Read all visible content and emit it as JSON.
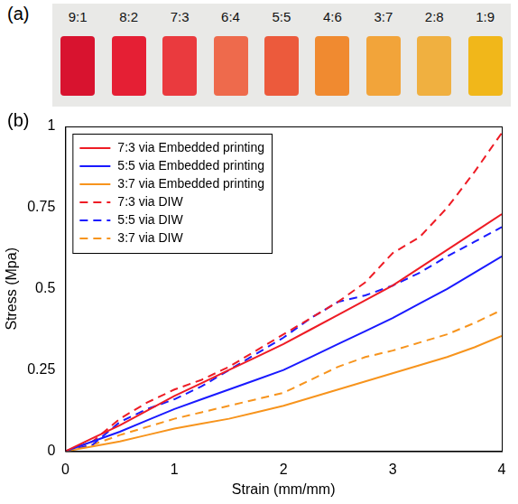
{
  "photo": {
    "label": "(a)",
    "swatches": [
      {
        "label": "9:1",
        "color": "#d8132f"
      },
      {
        "label": "8:2",
        "color": "#e51f34"
      },
      {
        "label": "7:3",
        "color": "#ea3a3e"
      },
      {
        "label": "6:4",
        "color": "#ee6a4c"
      },
      {
        "label": "5:5",
        "color": "#ec5a3c"
      },
      {
        "label": "4:6",
        "color": "#f08a30"
      },
      {
        "label": "3:7",
        "color": "#f2a43a"
      },
      {
        "label": "2:8",
        "color": "#f0b040"
      },
      {
        "label": "1:9",
        "color": "#f1b71a"
      }
    ]
  },
  "chart_label": "(b)",
  "chart_data": {
    "type": "line",
    "x_label": "Strain (mm/mm)",
    "y_label": "Stress (Mpa)",
    "x": [
      0,
      0.25,
      0.5,
      0.75,
      1,
      1.25,
      1.5,
      1.75,
      2,
      2.25,
      2.5,
      2.75,
      3,
      3.25,
      3.5,
      3.75,
      4
    ],
    "series": [
      {
        "name": "7:3 via Embedded printing",
        "color": "#ee1c25",
        "line_style": "solid",
        "values": [
          0,
          0.04,
          0.08,
          0.125,
          0.17,
          0.21,
          0.25,
          0.29,
          0.33,
          0.375,
          0.42,
          0.465,
          0.51,
          0.565,
          0.62,
          0.675,
          0.73
        ]
      },
      {
        "name": "5:5 via Embedded printing",
        "color": "#1a1aff",
        "line_style": "solid",
        "values": [
          0,
          0.03,
          0.06,
          0.095,
          0.13,
          0.16,
          0.19,
          0.22,
          0.25,
          0.29,
          0.33,
          0.37,
          0.41,
          0.455,
          0.5,
          0.55,
          0.6
        ]
      },
      {
        "name": "3:7 via Embedded printing",
        "color": "#f7941d",
        "line_style": "solid",
        "values": [
          0,
          0.015,
          0.03,
          0.05,
          0.07,
          0.085,
          0.1,
          0.12,
          0.14,
          0.165,
          0.19,
          0.215,
          0.24,
          0.265,
          0.29,
          0.32,
          0.355
        ]
      },
      {
        "name": "7:3 via DIW",
        "color": "#ee1c25",
        "line_style": "dashed",
        "values": [
          0,
          0.03,
          0.1,
          0.15,
          0.19,
          0.22,
          0.26,
          0.31,
          0.36,
          0.41,
          0.46,
          0.52,
          0.61,
          0.66,
          0.75,
          0.86,
          0.98
        ]
      },
      {
        "name": "5:5 via DIW",
        "color": "#1a1aff",
        "line_style": "dashed",
        "values": [
          0,
          0.02,
          0.09,
          0.13,
          0.16,
          0.2,
          0.25,
          0.3,
          0.35,
          0.41,
          0.46,
          0.48,
          0.51,
          0.55,
          0.6,
          0.645,
          0.69
        ]
      },
      {
        "name": "3:7 via DIW",
        "color": "#f7941d",
        "line_style": "dashed",
        "values": [
          0,
          0.02,
          0.05,
          0.075,
          0.1,
          0.12,
          0.14,
          0.16,
          0.18,
          0.22,
          0.26,
          0.29,
          0.31,
          0.335,
          0.36,
          0.395,
          0.435
        ]
      }
    ],
    "xlim": [
      0,
      4
    ],
    "xticks": [
      0,
      1,
      2,
      3,
      4
    ],
    "ylim": [
      0,
      1
    ],
    "yticks": [
      0,
      0.25,
      0.5,
      0.75,
      1
    ],
    "grid": false,
    "legend": "upper left"
  }
}
